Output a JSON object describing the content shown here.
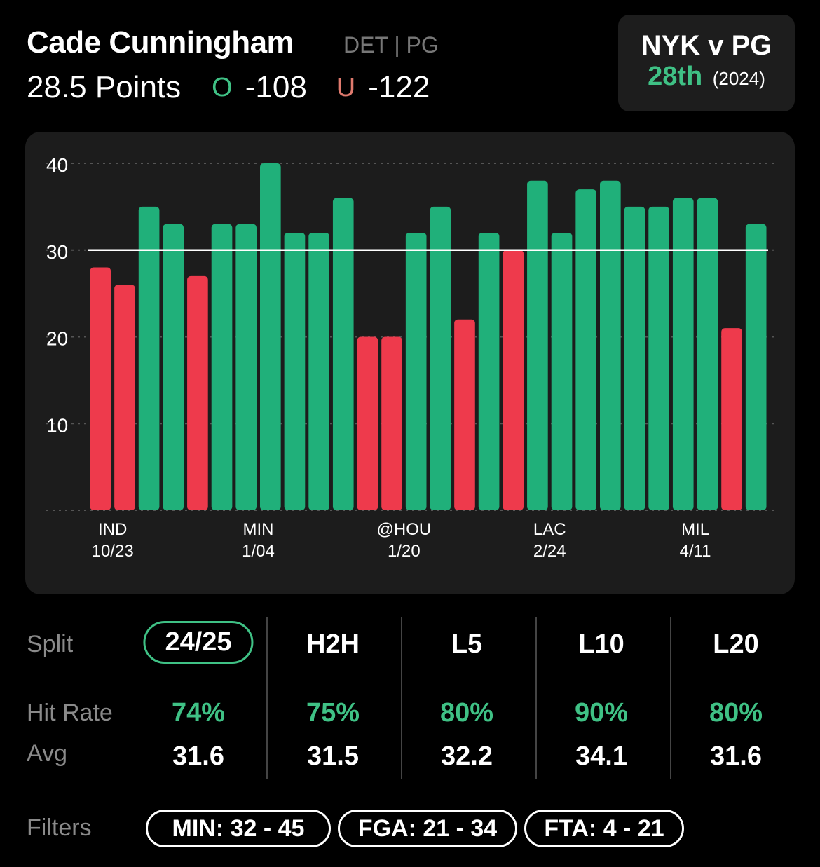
{
  "header": {
    "player_name": "Cade Cunningham",
    "team_position": "DET | PG",
    "line_label": "28.5 Points",
    "over_icon": "O",
    "over_odds": "-108",
    "under_icon": "U",
    "under_odds": "-122"
  },
  "matchup": {
    "title": "NYK v PG",
    "rank": "28th",
    "year": "(2024)"
  },
  "colors": {
    "hit": "#20b07a",
    "miss": "#ee3a4c",
    "accent": "#3fc185",
    "card": "#1c1c1c"
  },
  "chart_data": {
    "type": "bar",
    "line": 30,
    "ylim": [
      0,
      40
    ],
    "yticks": [
      10,
      20,
      30,
      40
    ],
    "grid": true,
    "values": [
      28,
      26,
      35,
      33,
      27,
      33,
      33,
      40,
      32,
      32,
      36,
      20,
      20,
      32,
      35,
      22,
      32,
      30,
      38,
      32,
      37,
      38,
      35,
      35,
      36,
      36,
      21,
      33
    ],
    "x_labels": [
      {
        "index": 0,
        "team": "IND",
        "date": "10/23"
      },
      {
        "index": 6,
        "team": "MIN",
        "date": "1/04"
      },
      {
        "index": 12,
        "team": "@HOU",
        "date": "1/20"
      },
      {
        "index": 18,
        "team": "LAC",
        "date": "2/24"
      },
      {
        "index": 24,
        "team": "MIL",
        "date": "4/11"
      }
    ]
  },
  "splits": {
    "labels": {
      "split": "Split",
      "hit_rate": "Hit Rate",
      "avg": "Avg",
      "filters": "Filters"
    },
    "columns": [
      {
        "name": "24/25",
        "hit_rate": "74%",
        "avg": "31.6",
        "active": true
      },
      {
        "name": "H2H",
        "hit_rate": "75%",
        "avg": "31.5",
        "active": false
      },
      {
        "name": "L5",
        "hit_rate": "80%",
        "avg": "32.2",
        "active": false
      },
      {
        "name": "L10",
        "hit_rate": "90%",
        "avg": "34.1",
        "active": false
      },
      {
        "name": "L20",
        "hit_rate": "80%",
        "avg": "31.6",
        "active": false
      }
    ],
    "filters": [
      "MIN: 32 - 45",
      "FGA: 21 - 34",
      "FTA: 4 - 21"
    ]
  }
}
